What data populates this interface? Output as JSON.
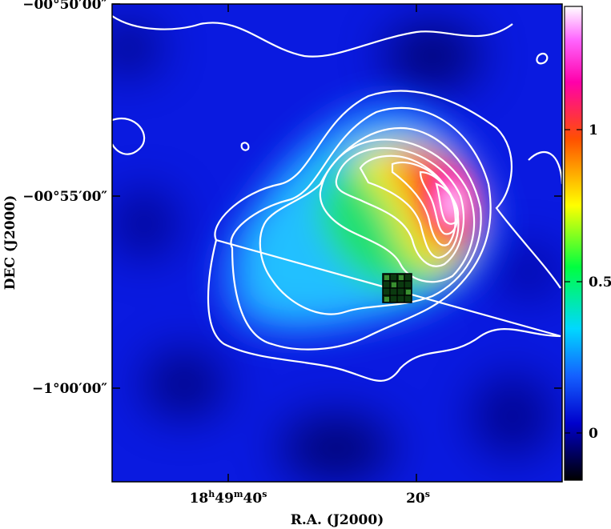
{
  "image": {
    "description_type": "astronomical map with contours and colorbar",
    "x_axis": {
      "label": "R.A. (J2000)",
      "ticks": [
        {
          "h": "18",
          "m": "49",
          "s": "40"
        },
        {
          "h": "",
          "m": "",
          "s": "20"
        }
      ]
    },
    "y_axis": {
      "label": "DEC (J2000)",
      "ticks": [
        "−00°50′00″",
        "−00°55′00″",
        "−1°00′00″"
      ]
    },
    "colorbar": {
      "ticks": [
        "1",
        "0.5",
        "0"
      ],
      "colormap": [
        "#000000",
        "#0000ff",
        "#00ffff",
        "#00ff00",
        "#ffff00",
        "#ff0000",
        "#ff00ff",
        "#ffffff"
      ]
    },
    "colors": {
      "background_map": "#0a1ae0",
      "contour": "#ffffff",
      "grid_marker": "#000000"
    }
  }
}
